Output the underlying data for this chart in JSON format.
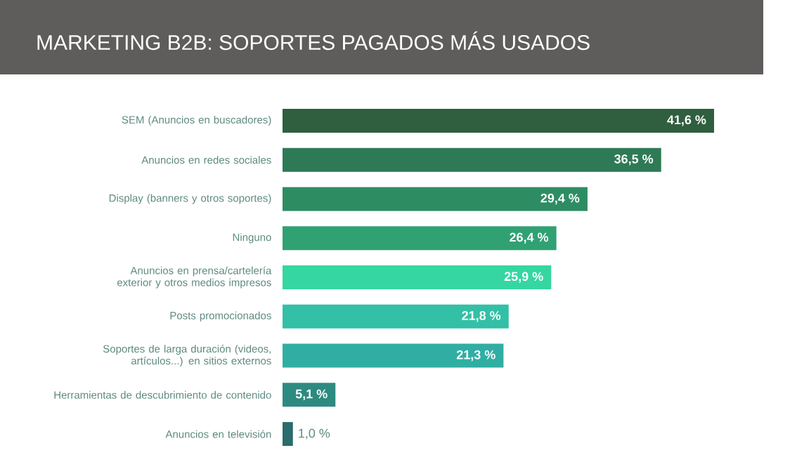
{
  "chart_data": {
    "type": "bar",
    "orientation": "horizontal",
    "title": "MARKETING B2B: SOPORTES PAGADOS MÁS USADOS",
    "categories": [
      "SEM (Anuncios en buscadores)",
      "Anuncios en redes sociales",
      "Display (banners y otros soportes)",
      "Ninguno",
      "Anuncios en prensa/cartelería exterior y otros medios impresos",
      "Posts promocionados",
      "Soportes de larga duración (videos, artículos...) en sitios externos",
      "Herramientas de descubrimiento de contenido",
      "Anuncios en televisión"
    ],
    "values": [
      41.6,
      36.5,
      29.4,
      26.4,
      25.9,
      21.8,
      21.3,
      5.1,
      1.0
    ],
    "value_labels": [
      "41,6 %",
      "36,5 %",
      "29,4 %",
      "26,4 %",
      "25,9 %",
      "21,8 %",
      "21,3 %",
      "5,1 %",
      "1,0 %"
    ],
    "colors": [
      "#2f5f3f",
      "#2e7a56",
      "#2e8c63",
      "#30a173",
      "#35d6a1",
      "#33c0a6",
      "#30aea3",
      "#2d8a80",
      "#2b6c6c"
    ],
    "tick_labels": "y",
    "grid": false
  }
}
